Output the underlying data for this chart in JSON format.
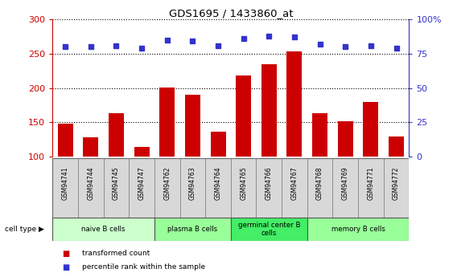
{
  "title": "GDS1695 / 1433860_at",
  "samples": [
    "GSM94741",
    "GSM94744",
    "GSM94745",
    "GSM94747",
    "GSM94762",
    "GSM94763",
    "GSM94764",
    "GSM94765",
    "GSM94766",
    "GSM94767",
    "GSM94768",
    "GSM94769",
    "GSM94771",
    "GSM94772"
  ],
  "transformed_count": [
    148,
    128,
    163,
    114,
    201,
    190,
    136,
    218,
    235,
    253,
    163,
    151,
    180,
    129
  ],
  "percentile_rank": [
    80,
    80,
    81,
    79,
    85,
    84,
    81,
    86,
    88,
    87,
    82,
    80,
    81,
    79
  ],
  "ylim_left": [
    100,
    300
  ],
  "ylim_right": [
    0,
    100
  ],
  "yticks_left": [
    100,
    150,
    200,
    250,
    300
  ],
  "yticks_right": [
    0,
    25,
    50,
    75,
    100
  ],
  "ytick_right_labels": [
    "0",
    "25",
    "50",
    "75",
    "100%"
  ],
  "bar_color": "#cc0000",
  "dot_color": "#3333cc",
  "left_axis_color": "#cc0000",
  "right_axis_color": "#3333cc",
  "sample_bg_color": "#d8d8d8",
  "cell_groups": [
    {
      "label": "naive B cells",
      "start": 0,
      "end": 4,
      "color": "#ccffcc"
    },
    {
      "label": "plasma B cells",
      "start": 4,
      "end": 7,
      "color": "#99ff99"
    },
    {
      "label": "germinal center B\ncells",
      "start": 7,
      "end": 10,
      "color": "#44ee66"
    },
    {
      "label": "memory B cells",
      "start": 10,
      "end": 14,
      "color": "#99ff99"
    }
  ],
  "legend_items": [
    {
      "label": "transformed count",
      "color": "#cc0000"
    },
    {
      "label": "percentile rank within the sample",
      "color": "#3333cc"
    }
  ]
}
